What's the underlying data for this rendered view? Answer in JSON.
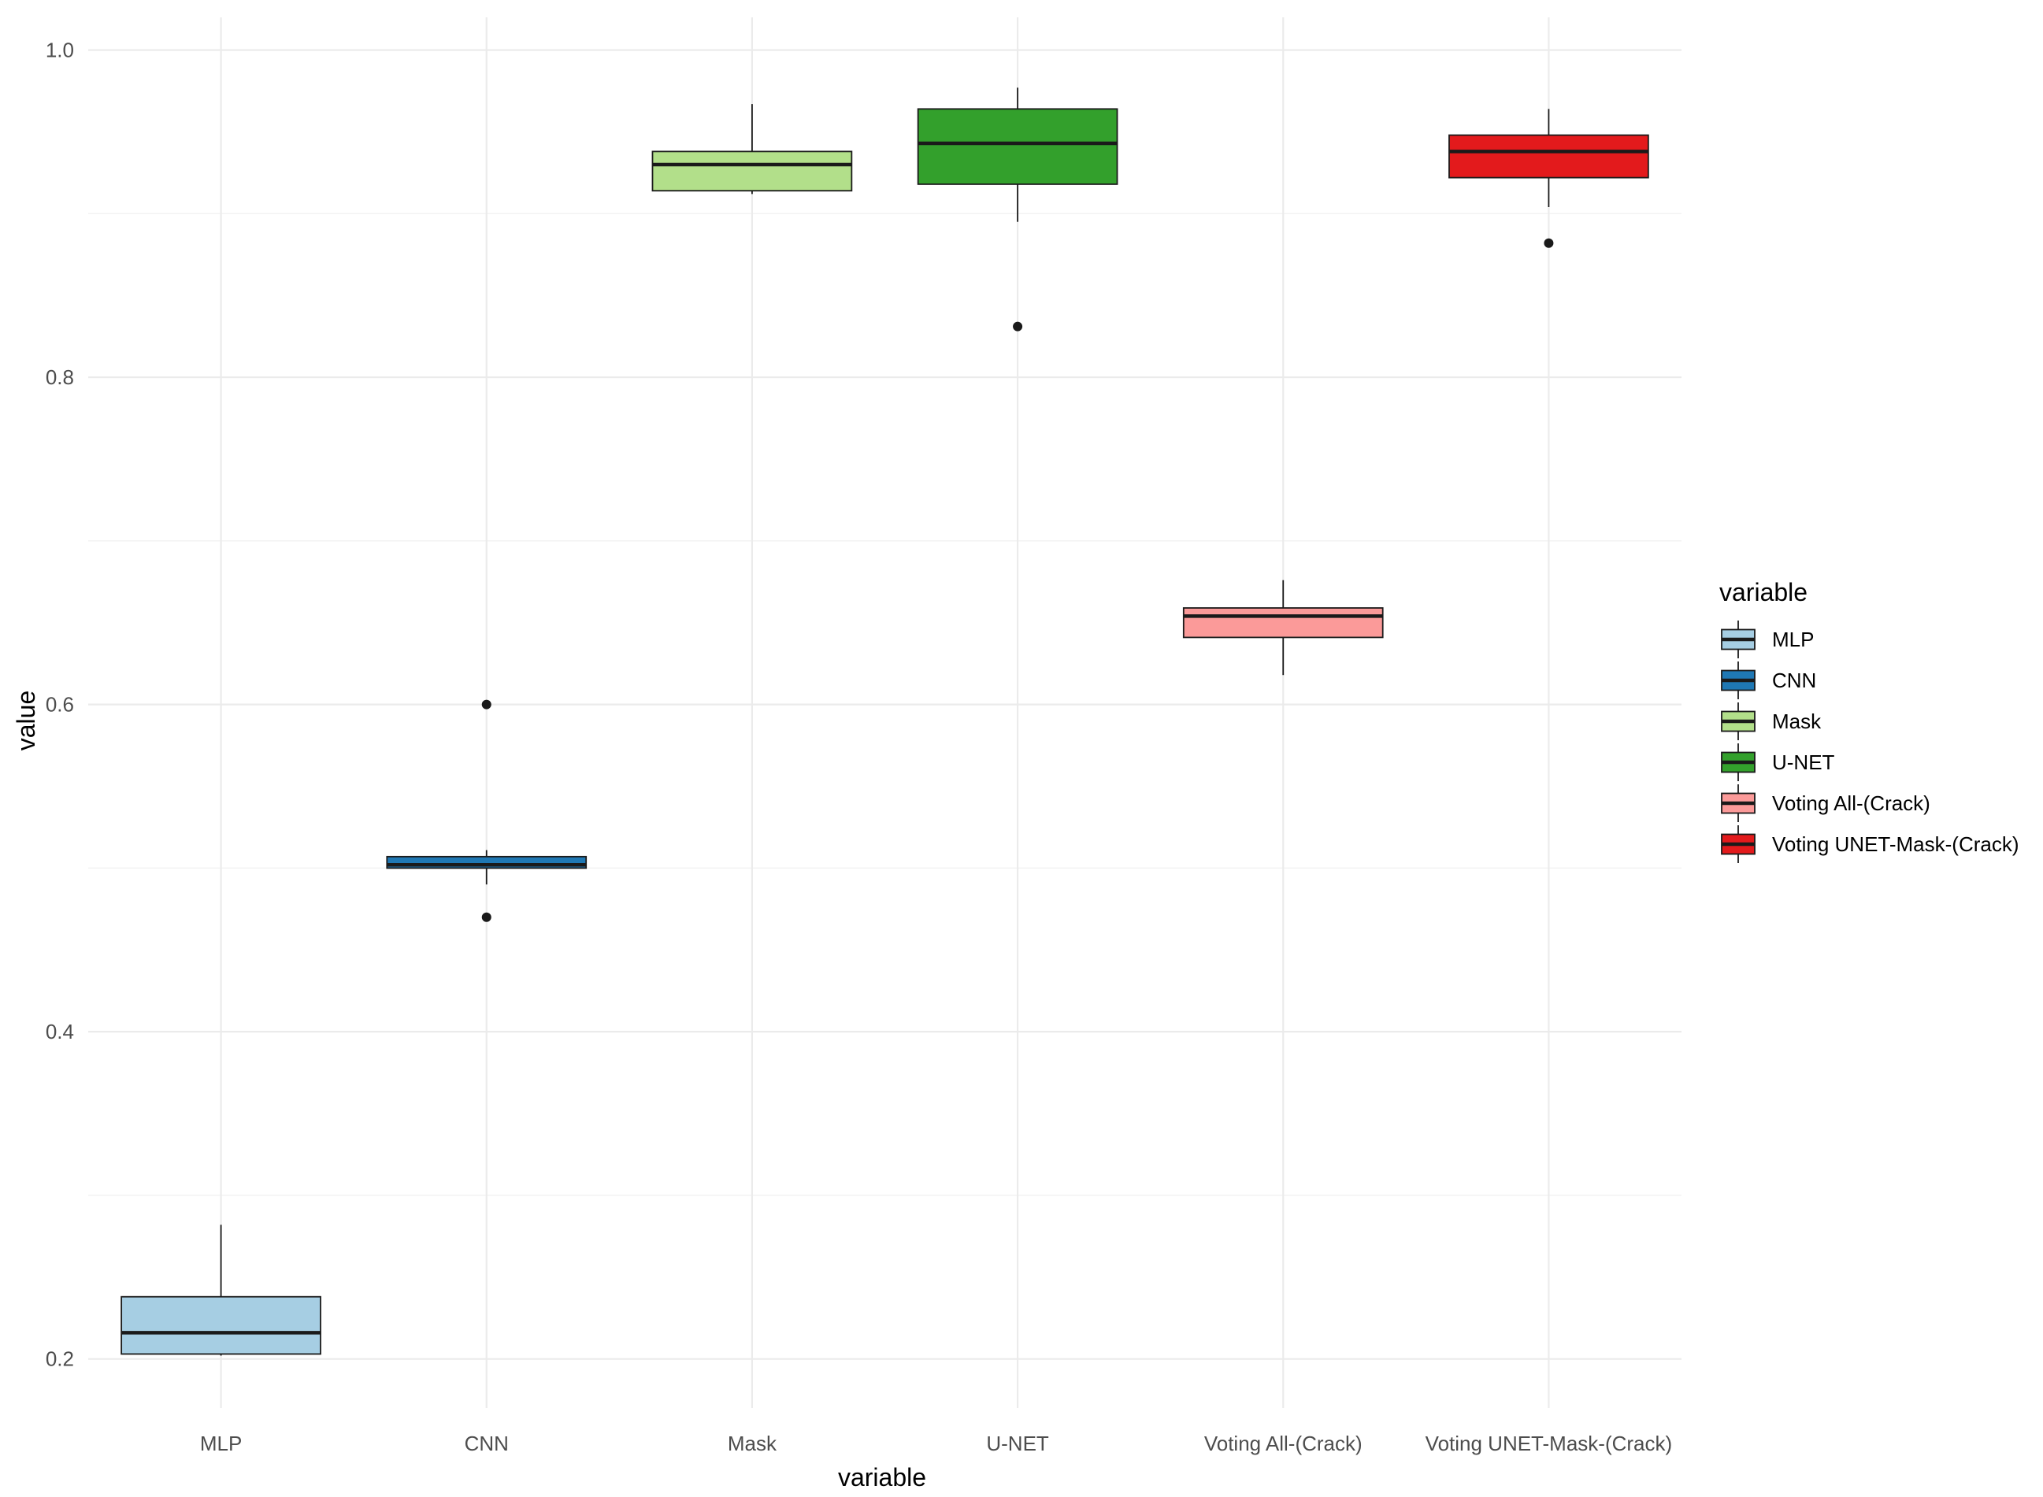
{
  "chart_data": {
    "type": "boxplot",
    "xlabel": "variable",
    "ylabel": "value",
    "ylim": [
      0.17,
      1.02
    ],
    "y_ticks": [
      "0.2",
      "0.4",
      "0.6",
      "0.8",
      "1.0"
    ],
    "legend": {
      "title": "variable",
      "position": "right"
    },
    "grid": true,
    "categories": [
      "MLP",
      "CNN",
      "Mask",
      "U-NET",
      "Voting All-(Crack)",
      "Voting UNET-Mask-(Crack)"
    ],
    "series": [
      {
        "name": "MLP",
        "color": "#A6CEE3",
        "min": 0.202,
        "q1": 0.203,
        "median": 0.216,
        "q3": 0.238,
        "max": 0.282,
        "outliers": []
      },
      {
        "name": "CNN",
        "color": "#1F78B4",
        "min": 0.49,
        "q1": 0.5,
        "median": 0.502,
        "q3": 0.507,
        "max": 0.511,
        "outliers": [
          0.6,
          0.47
        ]
      },
      {
        "name": "Mask",
        "color": "#B2DF8A",
        "min": 0.912,
        "q1": 0.914,
        "median": 0.93,
        "q3": 0.938,
        "max": 0.967,
        "outliers": []
      },
      {
        "name": "U-NET",
        "color": "#33A02C",
        "min": 0.895,
        "q1": 0.918,
        "median": 0.943,
        "q3": 0.964,
        "max": 0.977,
        "outliers": [
          0.831
        ]
      },
      {
        "name": "Voting All-(Crack)",
        "color": "#FB9A99",
        "min": 0.618,
        "q1": 0.641,
        "median": 0.654,
        "q3": 0.659,
        "max": 0.676,
        "outliers": []
      },
      {
        "name": "Voting UNET-Mask-(Crack)",
        "color": "#E31A1C",
        "min": 0.904,
        "q1": 0.922,
        "median": 0.938,
        "q3": 0.948,
        "max": 0.964,
        "outliers": [
          0.882
        ]
      }
    ]
  }
}
